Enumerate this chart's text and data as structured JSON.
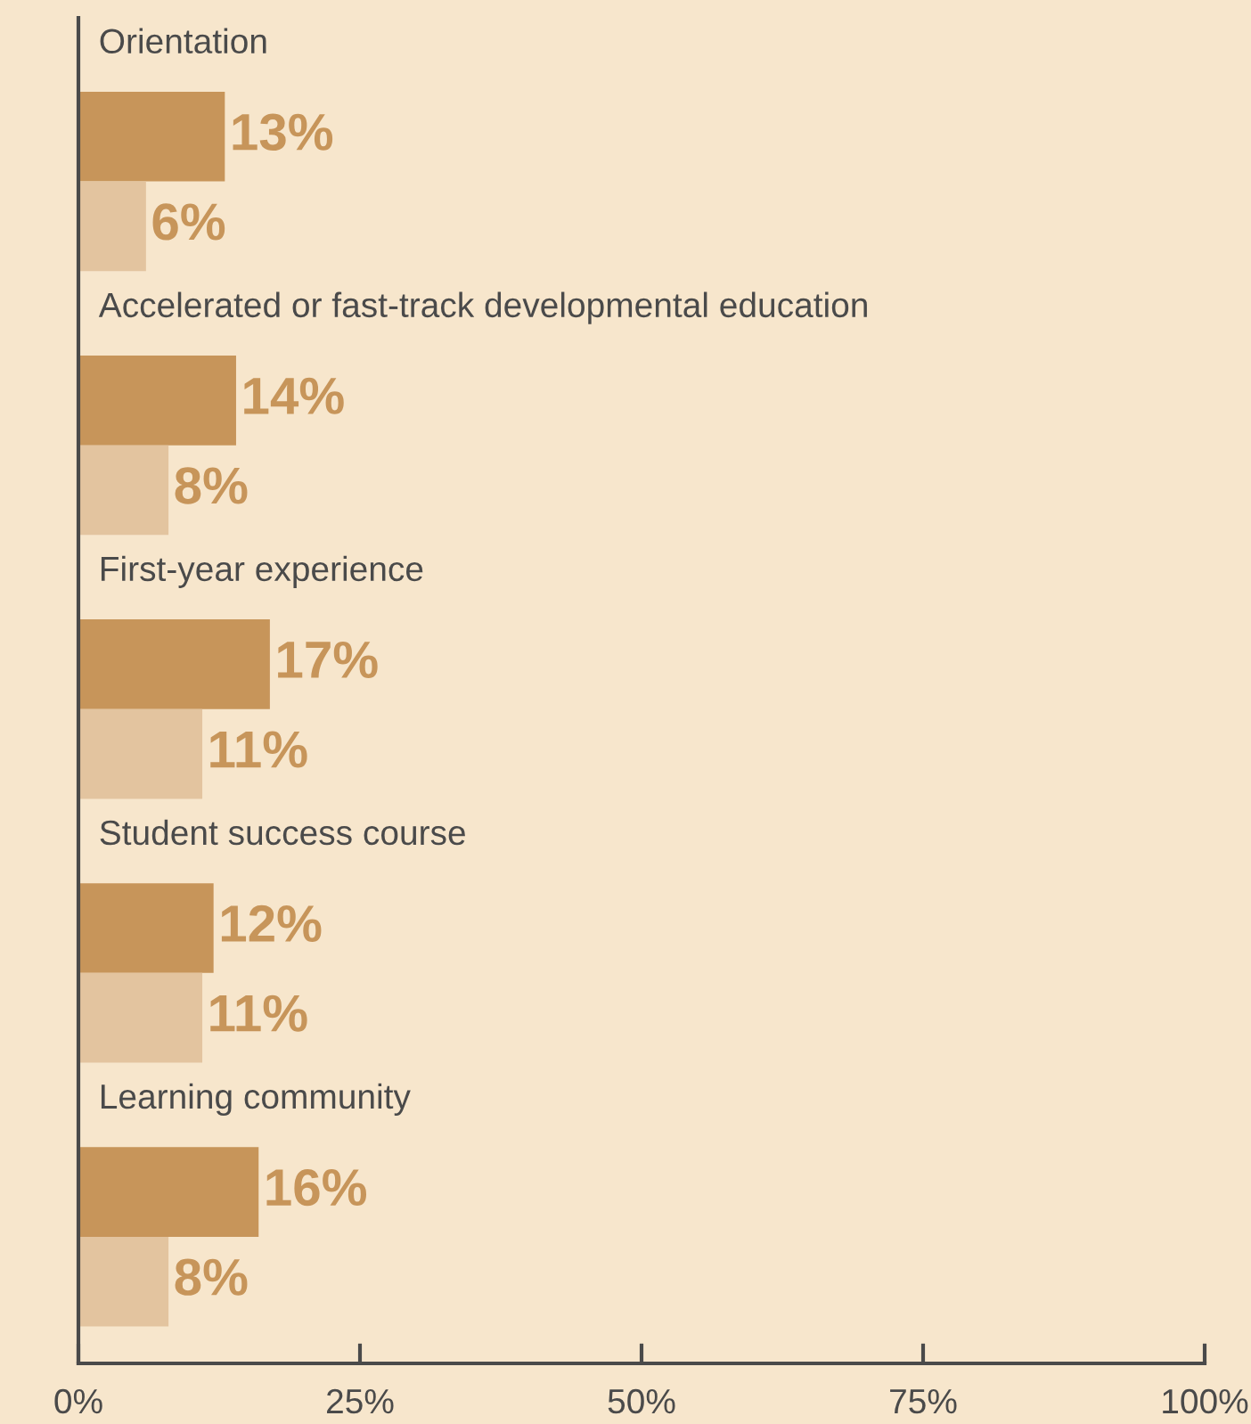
{
  "chart_data": {
    "type": "bar",
    "orientation": "horizontal",
    "categories": [
      "Orientation",
      "Accelerated or fast-track developmental education",
      "First-year experience",
      "Student success course",
      "Learning community"
    ],
    "series": [
      {
        "color": "#c7955a",
        "values": [
          13,
          14,
          17,
          12,
          16
        ],
        "value_labels": [
          "13%",
          "14%",
          "17%",
          "12%",
          "16%"
        ]
      },
      {
        "color": "#e3c49f",
        "values": [
          6,
          8,
          11,
          11,
          8
        ],
        "value_labels": [
          "6%",
          "8%",
          "11%",
          "11%",
          "8%"
        ]
      }
    ],
    "xlim": [
      0,
      100
    ],
    "xticks": [
      {
        "value": 0,
        "label": "0%"
      },
      {
        "value": 25,
        "label": "25%"
      },
      {
        "value": 50,
        "label": "50%"
      },
      {
        "value": 75,
        "label": "75%"
      },
      {
        "value": 100,
        "label": "100%"
      }
    ],
    "grid": false,
    "legend": false
  }
}
